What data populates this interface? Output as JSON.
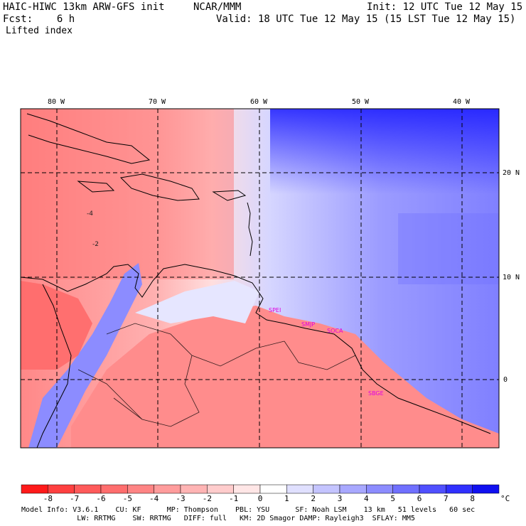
{
  "header": {
    "model_title": "HAIC-HIWC 13km ARW-GFS init",
    "org": "NCAR/MMM",
    "init": "Init: 12 UTC Tue 12 May 15",
    "fcst_label": "Fcst:",
    "fcst_value": "6 h",
    "valid": "Valid: 18 UTC Tue 12 May 15 (15 LST Tue 12 May 15)",
    "field": "Lifted index"
  },
  "map": {
    "lon_ticks": [
      "80 W",
      "70 W",
      "60 W",
      "50 W",
      "40 W"
    ],
    "lat_ticks": [
      "20 N",
      "10 N",
      "0"
    ],
    "stations": [
      "SPEI",
      "SMJP",
      "SOCA",
      "SBGE"
    ],
    "contour_labels": [
      "-4",
      "-2"
    ]
  },
  "colorbar": {
    "labels": [
      "-8",
      "-7",
      "-6",
      "-5",
      "-4",
      "-3",
      "-2",
      "-1",
      "0",
      "1",
      "2",
      "3",
      "4",
      "5",
      "6",
      "7",
      "8"
    ],
    "unit": "°C",
    "colors": [
      "#ff1a1a",
      "#ff4040",
      "#ff5a5a",
      "#ff6e6e",
      "#ff8484",
      "#ff9c9c",
      "#ffb4b4",
      "#ffcccc",
      "#ffe6e6",
      "#ffffff",
      "#e0e0ff",
      "#c4c4ff",
      "#a8a8ff",
      "#8c8cff",
      "#7070ff",
      "#5050ff",
      "#3030ff",
      "#1010f0"
    ]
  },
  "footer": {
    "line1": "Model Info: V3.6.1    CU: KF      MP: Thompson    PBL: YSU      SF: Noah LSM    13 km   51 levels   60 sec",
    "line2": "             LW: RRTMG    SW: RRTMG   DIFF: full   KM: 2D Smagor DAMP: Rayleigh3  SFLAY: MM5"
  }
}
